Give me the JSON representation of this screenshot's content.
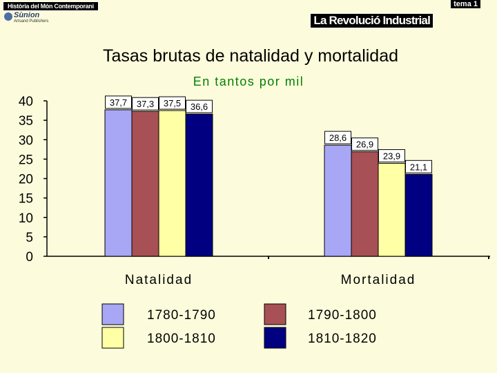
{
  "header": {
    "left_banner": "Història del Món Contemporani",
    "right_tag": "tema 1",
    "section_title": "La Revolució Industrial",
    "logo_name": "Sùnion",
    "logo_sub": "Artsand Publishers"
  },
  "colors": {
    "background": "#fcfcdc",
    "series": [
      "#a7a7f5",
      "#a75055",
      "#ffffa5",
      "#000080"
    ]
  },
  "chart_data": {
    "type": "bar",
    "title": "Tasas brutas de natalidad y mortalidad",
    "subtitle": "En tantos por mil",
    "categories": [
      "Natalidad",
      "Mortalidad"
    ],
    "ylim": [
      0,
      40
    ],
    "yticks": [
      0,
      5,
      10,
      15,
      20,
      25,
      30,
      35,
      40
    ],
    "grid": false,
    "legend_position": "bottom",
    "series": [
      {
        "name": "1780-1790",
        "values": [
          37.7,
          28.6
        ],
        "labels": [
          "37,7",
          "28,6"
        ]
      },
      {
        "name": "1790-1800",
        "values": [
          37.3,
          26.9
        ],
        "labels": [
          "37,3",
          "26,9"
        ]
      },
      {
        "name": "1800-1810",
        "values": [
          37.5,
          23.9
        ],
        "labels": [
          "37,5",
          "23,9"
        ]
      },
      {
        "name": "1810-1820",
        "values": [
          36.6,
          21.1
        ],
        "labels": [
          "36,6",
          "21,1"
        ]
      }
    ]
  }
}
